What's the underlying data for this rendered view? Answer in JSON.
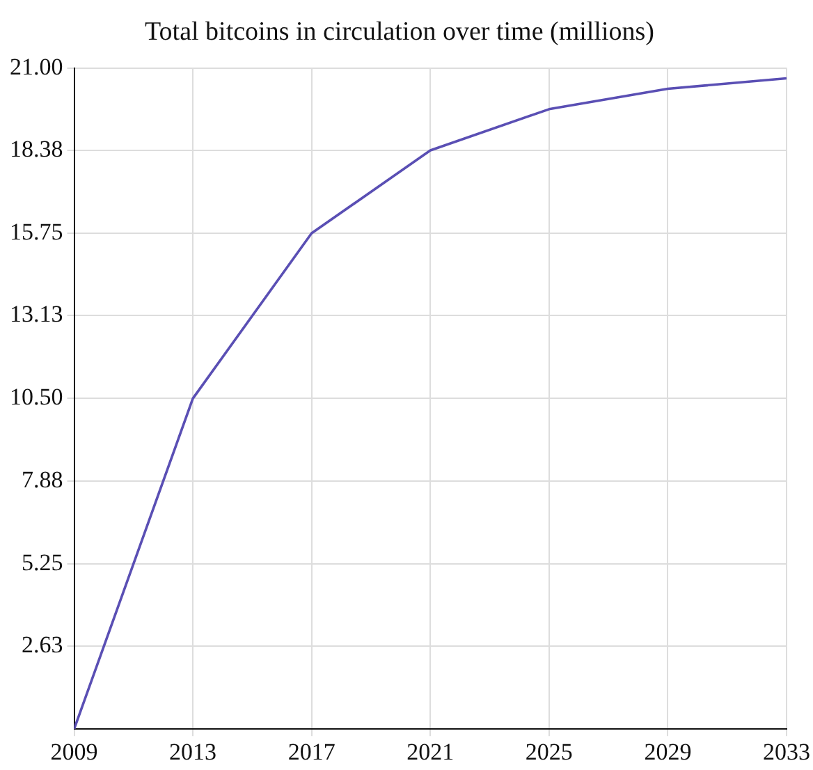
{
  "chart_data": {
    "type": "line",
    "title": "Total bitcoins in circulation over time (millions)",
    "x": [
      2009,
      2013,
      2017,
      2021,
      2025,
      2029,
      2033
    ],
    "series": [
      {
        "color": "#5a4fb4",
        "values": [
          0,
          10.5,
          15.75,
          18.38,
          19.69,
          20.34,
          20.67
        ]
      }
    ],
    "xlim": [
      2009,
      2033
    ],
    "xticks": [
      2009,
      2013,
      2017,
      2021,
      2025,
      2029,
      2033
    ],
    "ylim": [
      0,
      21
    ],
    "yticks": [
      2.63,
      5.25,
      7.88,
      {
        "value": 10.5,
        "label": "10.50"
      },
      13.13,
      15.75,
      18.38,
      {
        "value": 21,
        "label": "21.00"
      }
    ],
    "grid": true,
    "marker": "none",
    "line_style": "solid",
    "legend": false
  }
}
